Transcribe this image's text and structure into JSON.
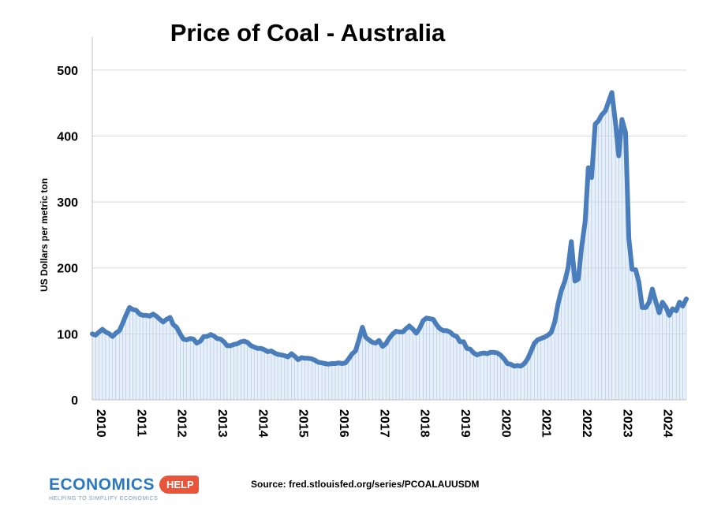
{
  "chart_data": {
    "type": "line",
    "title": "Price of Coal - Australia",
    "ylabel": "US Dollars per metric ton",
    "xlabel": "",
    "ylim": [
      0,
      550
    ],
    "xlim": [
      2010.0,
      2024.67
    ],
    "yticks": [
      "0",
      "100",
      "200",
      "300",
      "400",
      "500"
    ],
    "xticks": [
      "2010",
      "2011",
      "2012",
      "2013",
      "2014",
      "2015",
      "2016",
      "2017",
      "2018",
      "2019",
      "2020",
      "2021",
      "2022",
      "2023",
      "2024"
    ],
    "grid": "horizontal",
    "legend": "none",
    "line_color": "#4a7dbb",
    "fill_color": "#c9dcf0",
    "series": [
      {
        "x": [
          2010.0,
          2010.08,
          2010.17,
          2010.25,
          2010.33,
          2010.42,
          2010.5,
          2010.58,
          2010.67,
          2010.75,
          2010.83,
          2010.92,
          2011.0,
          2011.08,
          2011.17,
          2011.25,
          2011.33,
          2011.42,
          2011.5,
          2011.58,
          2011.67,
          2011.75,
          2011.83,
          2011.92,
          2012.0,
          2012.08,
          2012.17,
          2012.25,
          2012.33,
          2012.42,
          2012.5,
          2012.58,
          2012.67,
          2012.75,
          2012.83,
          2012.92,
          2013.0,
          2013.08,
          2013.17,
          2013.25,
          2013.33,
          2013.42,
          2013.5,
          2013.58,
          2013.67,
          2013.75,
          2013.83,
          2013.92,
          2014.0,
          2014.08,
          2014.17,
          2014.25,
          2014.33,
          2014.42,
          2014.5,
          2014.58,
          2014.67,
          2014.75,
          2014.83,
          2014.92,
          2015.0,
          2015.08,
          2015.17,
          2015.25,
          2015.33,
          2015.42,
          2015.5,
          2015.58,
          2015.67,
          2015.75,
          2015.83,
          2015.92,
          2016.0,
          2016.08,
          2016.17,
          2016.25,
          2016.33,
          2016.42,
          2016.5,
          2016.58,
          2016.67,
          2016.75,
          2016.83,
          2016.92,
          2017.0,
          2017.08,
          2017.17,
          2017.25,
          2017.33,
          2017.42,
          2017.5,
          2017.58,
          2017.67,
          2017.75,
          2017.83,
          2017.92,
          2018.0,
          2018.08,
          2018.17,
          2018.25,
          2018.33,
          2018.42,
          2018.5,
          2018.58,
          2018.67,
          2018.75,
          2018.83,
          2018.92,
          2019.0,
          2019.08,
          2019.17,
          2019.25,
          2019.33,
          2019.42,
          2019.5,
          2019.58,
          2019.67,
          2019.75,
          2019.83,
          2019.92,
          2020.0,
          2020.08,
          2020.17,
          2020.25,
          2020.33,
          2020.42,
          2020.5,
          2020.58,
          2020.67,
          2020.75,
          2020.83,
          2020.92,
          2021.0,
          2021.08,
          2021.17,
          2021.25,
          2021.33,
          2021.42,
          2021.5,
          2021.58,
          2021.67,
          2021.75,
          2021.83,
          2021.92,
          2022.0,
          2022.08,
          2022.17,
          2022.25,
          2022.33,
          2022.42,
          2022.5,
          2022.58,
          2022.67,
          2022.75,
          2022.83,
          2022.92,
          2023.0,
          2023.08,
          2023.17,
          2023.25,
          2023.33,
          2023.42,
          2023.5,
          2023.58,
          2023.67,
          2023.75,
          2023.83,
          2023.92,
          2024.0,
          2024.08,
          2024.17,
          2024.25,
          2024.33,
          2024.42,
          2024.5,
          2024.58,
          2024.67
        ],
        "y": [
          100,
          98,
          103,
          107,
          103,
          100,
          96,
          101,
          105,
          116,
          128,
          140,
          137,
          136,
          130,
          128,
          128,
          127,
          130,
          127,
          122,
          118,
          122,
          125,
          114,
          110,
          100,
          92,
          91,
          93,
          92,
          86,
          89,
          96,
          96,
          99,
          97,
          93,
          92,
          88,
          82,
          82,
          84,
          85,
          88,
          89,
          87,
          82,
          80,
          78,
          78,
          76,
          73,
          74,
          71,
          69,
          68,
          67,
          65,
          70,
          66,
          61,
          64,
          63,
          63,
          62,
          60,
          57,
          56,
          55,
          54,
          55,
          55,
          56,
          55,
          56,
          62,
          70,
          74,
          90,
          110,
          95,
          91,
          87,
          86,
          90,
          81,
          85,
          93,
          100,
          104,
          103,
          103,
          108,
          112,
          107,
          101,
          108,
          120,
          124,
          123,
          122,
          114,
          108,
          105,
          105,
          103,
          98,
          96,
          88,
          88,
          78,
          77,
          71,
          68,
          70,
          71,
          70,
          72,
          72,
          71,
          68,
          62,
          55,
          54,
          51,
          52,
          51,
          55,
          62,
          73,
          86,
          91,
          93,
          95,
          98,
          102,
          118,
          145,
          165,
          180,
          200,
          240,
          180,
          183,
          230,
          270,
          352,
          337,
          418,
          423,
          432,
          438,
          452,
          466,
          420,
          370,
          425,
          405,
          245,
          198,
          197,
          178,
          140,
          140,
          148,
          168,
          148,
          132,
          148,
          140,
          128,
          138,
          135,
          148,
          142,
          153
        ]
      }
    ]
  },
  "source_text": "Source: fred.stlouisfed.org/series/PCOALAUUSDM",
  "logo": {
    "main": "ECONOMICS",
    "badge": "HELP",
    "tagline": "HELPING TO SIMPLIFY ECONOMICS"
  }
}
